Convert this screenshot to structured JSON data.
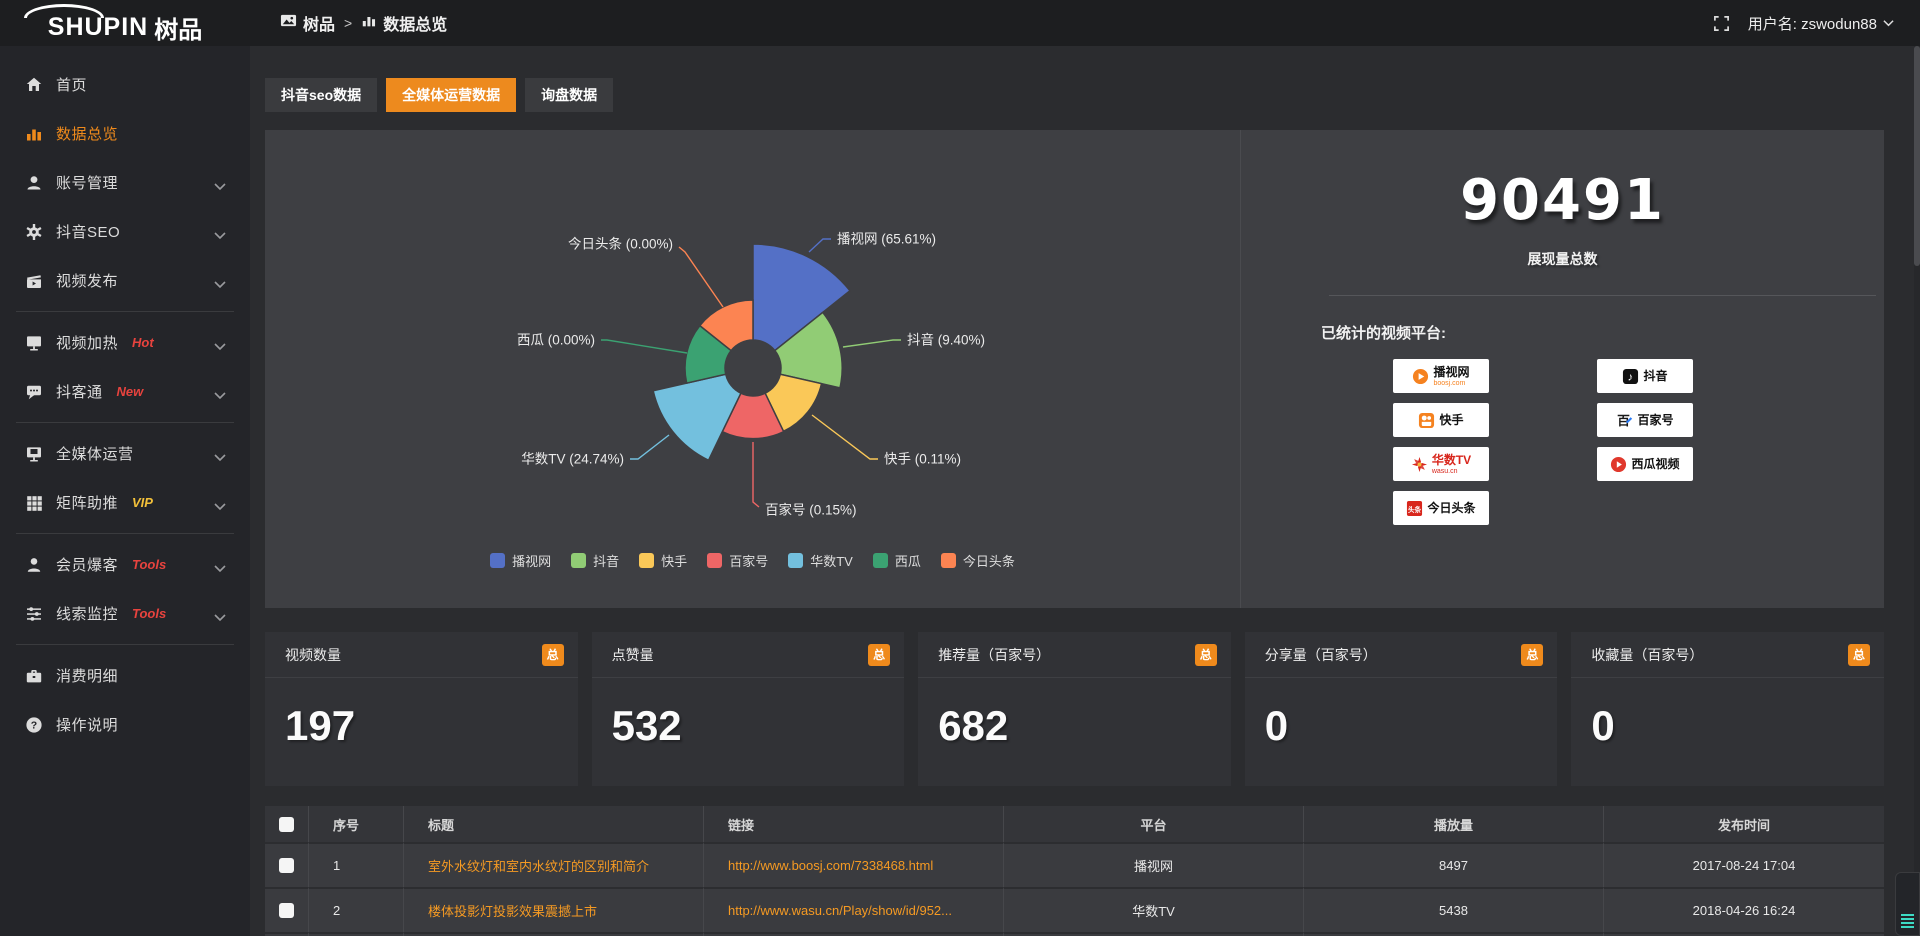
{
  "colors": {
    "accent": "#ef8a1c",
    "link": "#f59a23",
    "badge_red": "#e8433e",
    "badge_vip": "#f3c13a",
    "panel": "#3e3f43"
  },
  "topbar": {
    "logo_en": "SHUPIN",
    "logo_cn": "树品",
    "breadcrumb": [
      {
        "label": "树品"
      },
      {
        "label": "数据总览"
      }
    ],
    "username": "用户名: zswodun88"
  },
  "sidebar": {
    "groups": [
      {
        "items": [
          {
            "label": "首页",
            "icon": "home"
          },
          {
            "label": "数据总览",
            "icon": "bar-chart",
            "active": true
          },
          {
            "label": "账号管理",
            "icon": "user",
            "expandable": true
          },
          {
            "label": "抖音SEO",
            "icon": "gear",
            "expandable": true
          },
          {
            "label": "视频发布",
            "icon": "video-upload",
            "expandable": true
          }
        ]
      },
      {
        "items": [
          {
            "label": "视频加热",
            "icon": "screen-play",
            "badge": "Hot",
            "badge_color": "#e8433e",
            "expandable": true
          },
          {
            "label": "抖客通",
            "icon": "chat",
            "badge": "New",
            "badge_color": "#e8433e",
            "expandable": true
          }
        ]
      },
      {
        "items": [
          {
            "label": "全媒体运营",
            "icon": "monitor",
            "expandable": true
          },
          {
            "label": "矩阵助推",
            "icon": "grid",
            "badge": "VIP",
            "badge_color": "#f3c13a",
            "expandable": true
          }
        ]
      },
      {
        "items": [
          {
            "label": "会员爆客",
            "icon": "user-star",
            "badge": "Tools",
            "badge_color": "#e8433e",
            "expandable": true
          },
          {
            "label": "线索监控",
            "icon": "sliders",
            "badge": "Tools",
            "badge_color": "#e8433e",
            "expandable": true
          }
        ]
      },
      {
        "items": [
          {
            "label": "消费明细",
            "icon": "wallet"
          },
          {
            "label": "操作说明",
            "icon": "help"
          }
        ]
      }
    ]
  },
  "tabs": [
    {
      "label": "抖音seo数据",
      "active": false
    },
    {
      "label": "全媒体运营数据",
      "active": true
    },
    {
      "label": "询盘数据",
      "active": false
    }
  ],
  "chart_data": {
    "type": "pie",
    "subtype": "nightingale-rose",
    "legend_position": "bottom",
    "items": [
      {
        "name": "播视网",
        "percent": 65.61,
        "percent_label": "65.61%",
        "color": "#5470c6"
      },
      {
        "name": "抖音",
        "percent": 9.4,
        "percent_label": "9.40%",
        "color": "#91cc75"
      },
      {
        "name": "快手",
        "percent": 0.11,
        "percent_label": "0.11%",
        "color": "#fac858"
      },
      {
        "name": "百家号",
        "percent": 0.15,
        "percent_label": "0.15%",
        "color": "#ee6666"
      },
      {
        "name": "华数TV",
        "percent": 24.74,
        "percent_label": "24.74%",
        "color": "#73c0de"
      },
      {
        "name": "西瓜",
        "percent": 0.0,
        "percent_label": "0.00%",
        "color": "#3ba272"
      },
      {
        "name": "今日头条",
        "percent": 0.0,
        "percent_label": "0.00%",
        "color": "#fc8452"
      }
    ]
  },
  "summary": {
    "total": "90491",
    "total_caption": "展现量总数",
    "platforms_title": "已统计的视频平台:",
    "platforms": [
      {
        "name": "播视网",
        "sub": "boosj.com",
        "logo": "boosj"
      },
      {
        "name": "抖音",
        "logo": "douyin"
      },
      {
        "name": "快手",
        "logo": "kuaishou"
      },
      {
        "name": "百家号",
        "logo": "baijia"
      },
      {
        "name": "华数TV",
        "sub": "wasu.cn",
        "logo": "wasu"
      },
      {
        "name": "西瓜视频",
        "logo": "xigua"
      },
      {
        "name": "今日头条",
        "logo": "toutiao"
      }
    ]
  },
  "stat_cards": [
    {
      "title": "视频数量",
      "badge": "总",
      "value": "197"
    },
    {
      "title": "点赞量",
      "badge": "总",
      "value": "532"
    },
    {
      "title": "推荐量（百家号）",
      "badge": "总",
      "value": "682"
    },
    {
      "title": "分享量（百家号）",
      "badge": "总",
      "value": "0"
    },
    {
      "title": "收藏量（百家号）",
      "badge": "总",
      "value": "0"
    }
  ],
  "table": {
    "columns": [
      "",
      "序号",
      "标题",
      "链接",
      "平台",
      "播放量",
      "发布时间"
    ],
    "rows": [
      {
        "index": "1",
        "title": "室外水纹灯和室内水纹灯的区别和简介",
        "link": "http://www.boosj.com/7338468.html",
        "platform": "播视网",
        "plays": "8497",
        "published": "2017-08-24 17:04"
      },
      {
        "index": "2",
        "title": "楼体投影灯投影效果震撼上市",
        "link": "http://www.wasu.cn/Play/show/id/952...",
        "platform": "华数TV",
        "plays": "5438",
        "published": "2018-04-26 16:24"
      }
    ]
  }
}
